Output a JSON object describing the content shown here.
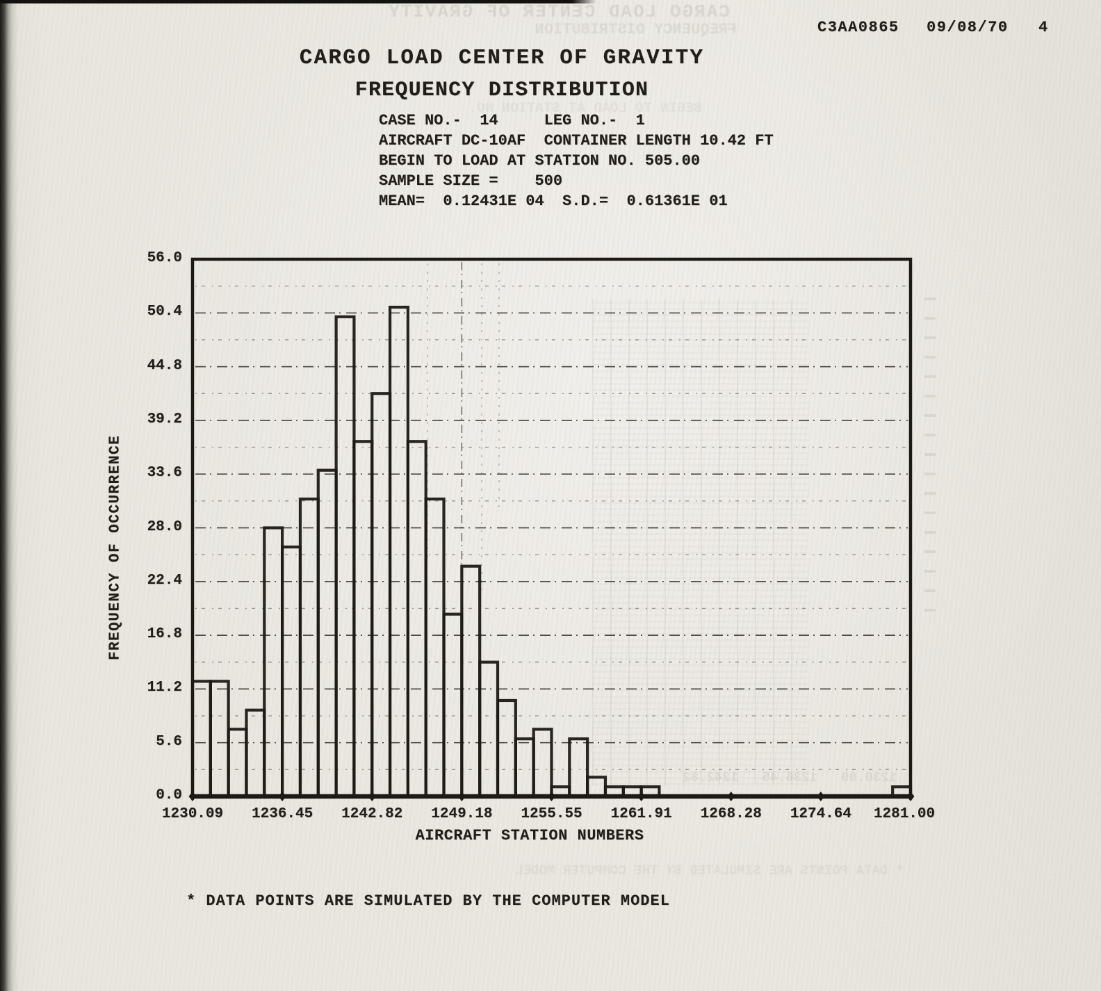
{
  "page": {
    "header": {
      "doc_code": "C3AA0865",
      "date": "09/08/70",
      "page_number": "4"
    },
    "title_line1": "CARGO LOAD CENTER OF GRAVITY",
    "title_line2": "FREQUENCY DISTRIBUTION",
    "info_lines": [
      "CASE NO.-  14     LEG NO.-  1",
      "AIRCRAFT DC-10AF  CONTAINER LENGTH 10.42 FT",
      "BEGIN TO LOAD AT STATION NO. 505.00",
      "SAMPLE SIZE =    500",
      "MEAN=  0.12431E 04  S.D.=  0.61361E 01"
    ],
    "footnote": "* DATA POINTS ARE SIMULATED BY THE COMPUTER MODEL"
  },
  "chart_data": {
    "type": "bar",
    "title": "CARGO LOAD CENTER OF GRAVITY — FREQUENCY DISTRIBUTION",
    "xlabel": "AIRCRAFT STATION NUMBERS",
    "ylabel": "FREQUENCY OF OCCURRENCE",
    "x_tick_labels": [
      "1230.09",
      "1236.45",
      "1242.82",
      "1249.18",
      "1255.55",
      "1261.91",
      "1268.28",
      "1274.64",
      "1281.00"
    ],
    "y_tick_labels": [
      "0.0",
      "5.6",
      "11.2",
      "16.8",
      "22.4",
      "28.0",
      "33.6",
      "39.2",
      "44.8",
      "50.4",
      "56.0"
    ],
    "xlim": [
      1230.09,
      1281.0
    ],
    "ylim": [
      0,
      56
    ],
    "y_tick_step": 5.6,
    "gridline_step": 2.8,
    "grid_style": "dash-dot horizontal lines every 2.8; vertical dash-dot reference line at 1249.18",
    "vertical_refline_x": 1249.18,
    "bins": 40,
    "bin_start": 1230.09,
    "bin_width": 1.27275,
    "frequencies": [
      12,
      12,
      7,
      9,
      28,
      26,
      31,
      34,
      50,
      37,
      42,
      51,
      37,
      31,
      19,
      24,
      14,
      10,
      6,
      7,
      1,
      6,
      2,
      1,
      1,
      1,
      0,
      0,
      0,
      0,
      0,
      0,
      0,
      0,
      0,
      0,
      0,
      0,
      0,
      1
    ],
    "sample_size": 500,
    "mean_label": "0.12431E 04",
    "sd_label": "0.61361E 01",
    "legend": "none",
    "bar_fill": "none",
    "ink_color": "#1d1a16",
    "paper_color": "#e9e6e0"
  },
  "showthrough": {
    "top_line1": "CARGO LOAD CENTER OF GRAVITY",
    "top_line2": "FREQUENCY DISTRIBUTION",
    "mid_line": "BEGIN TO LOAD AT STATION NO.",
    "bottom_numbers": "1230.09   1236.45   1242.82",
    "bottom_note": "* DATA POINTS ARE SIMULATED BY THE COMPUTER MODEL"
  }
}
